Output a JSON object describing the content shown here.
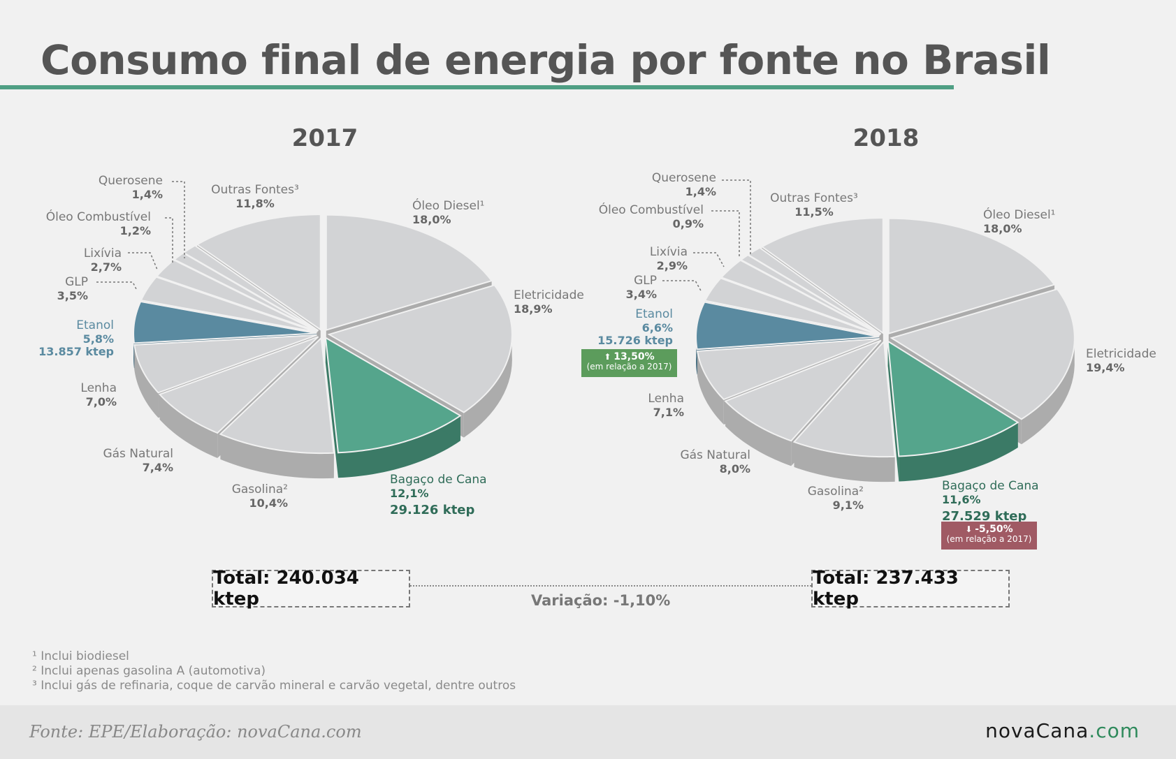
{
  "title": "Consumo final de energia por fonte no Brasil",
  "colors": {
    "accent": "#4f9f84",
    "gray_top": "#d2d3d5",
    "gray_side": "#acacac",
    "etanol": "#5a8aa0",
    "bagaco": "#55a58c",
    "badge_up": "#5c9c5c",
    "badge_down": "#a05a64"
  },
  "chart_data": [
    {
      "type": "pie",
      "title": "2017",
      "slices": [
        {
          "label": "Óleo Diesel¹",
          "pct_label": "18,0%",
          "value": 18.0,
          "color": "gray"
        },
        {
          "label": "Eletricidade",
          "pct_label": "18,9%",
          "value": 18.9,
          "color": "gray"
        },
        {
          "label": "Bagaço de Cana",
          "pct_label": "12,1%",
          "extra": "29.126 ktep",
          "value": 12.1,
          "color": "bagaco"
        },
        {
          "label": "Gasolina²",
          "pct_label": "10,4%",
          "value": 10.4,
          "color": "gray"
        },
        {
          "label": "Gás Natural",
          "pct_label": "7,4%",
          "value": 7.4,
          "color": "gray"
        },
        {
          "label": "Lenha",
          "pct_label": "7,0%",
          "value": 7.0,
          "color": "gray"
        },
        {
          "label": "Etanol",
          "pct_label": "5,8%",
          "extra": "13.857 ktep",
          "value": 5.8,
          "color": "etanol"
        },
        {
          "label": "GLP",
          "pct_label": "3,5%",
          "value": 3.5,
          "color": "gray"
        },
        {
          "label": "Lixívia",
          "pct_label": "2,7%",
          "value": 2.7,
          "color": "gray"
        },
        {
          "label": "Óleo Combustível",
          "pct_label": "1,2%",
          "value": 1.2,
          "color": "gray"
        },
        {
          "label": "Querosene",
          "pct_label": "1,4%",
          "value": 1.4,
          "color": "gray"
        },
        {
          "label": "Outras Fontes³",
          "pct_label": "11,8%",
          "value": 11.8,
          "color": "gray"
        }
      ],
      "total": "Total: 240.034 ktep"
    },
    {
      "type": "pie",
      "title": "2018",
      "slices": [
        {
          "label": "Óleo Diesel¹",
          "pct_label": "18,0%",
          "value": 18.0,
          "color": "gray"
        },
        {
          "label": "Eletricidade",
          "pct_label": "19,4%",
          "value": 19.4,
          "color": "gray"
        },
        {
          "label": "Bagaço de Cana",
          "pct_label": "11,6%",
          "extra": "27.529 ktep",
          "value": 11.6,
          "color": "bagaco"
        },
        {
          "label": "Gasolina²",
          "pct_label": "9,1%",
          "value": 9.1,
          "color": "gray"
        },
        {
          "label": "Gás Natural",
          "pct_label": "8,0%",
          "value": 8.0,
          "color": "gray"
        },
        {
          "label": "Lenha",
          "pct_label": "7,1%",
          "value": 7.1,
          "color": "gray"
        },
        {
          "label": "Etanol",
          "pct_label": "6,6%",
          "extra": "15.726 ktep",
          "value": 6.6,
          "color": "etanol"
        },
        {
          "label": "GLP",
          "pct_label": "3,4%",
          "value": 3.4,
          "color": "gray"
        },
        {
          "label": "Lixívia",
          "pct_label": "2,9%",
          "value": 2.9,
          "color": "gray"
        },
        {
          "label": "Óleo Combustível",
          "pct_label": "0,9%",
          "value": 0.9,
          "color": "gray"
        },
        {
          "label": "Querosene",
          "pct_label": "1,4%",
          "value": 1.4,
          "color": "gray"
        },
        {
          "label": "Outras Fontes³",
          "pct_label": "11,5%",
          "value": 11.5,
          "color": "gray"
        }
      ],
      "total": "Total: 237.433 ktep"
    }
  ],
  "badges": {
    "etanol_2018": {
      "pct": "13,50%",
      "note": "(em relação a 2017)"
    },
    "bagaco_2018": {
      "pct": "-5,50%",
      "note": "(em relação a 2017)"
    }
  },
  "variation": "Variação: -1,10%",
  "footnotes": [
    "¹ Inclui biodiesel",
    "² Inclui apenas gasolina A (automotiva)",
    "³ Inclui gás de refinaria, coque de carvão mineral e carvão vegetal, dentre outros"
  ],
  "source": "Fonte: EPE/Elaboração: novaCana.com",
  "brand": {
    "part1": "novaCana",
    "part2": ".com"
  }
}
